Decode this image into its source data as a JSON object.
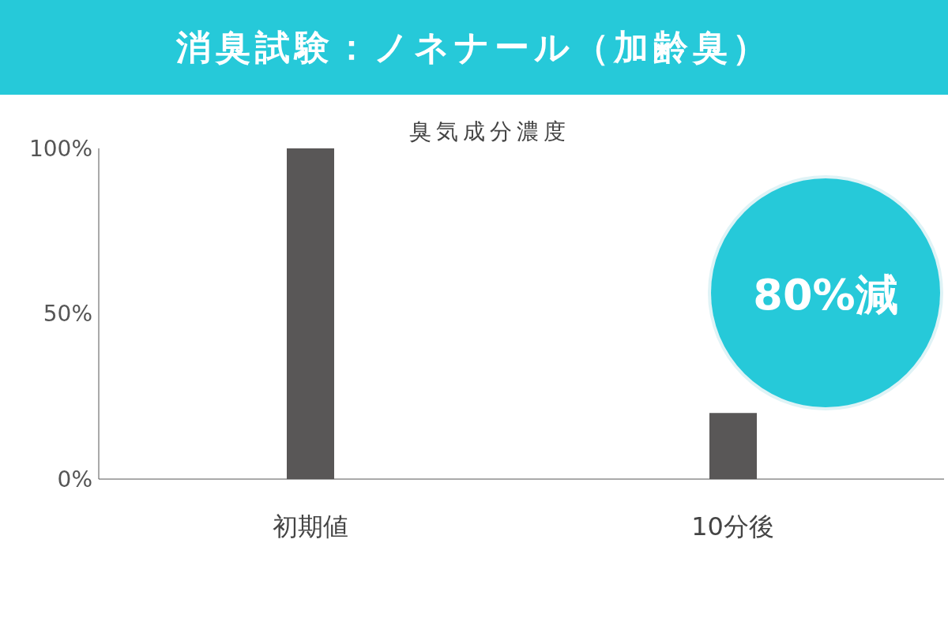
{
  "chart_data": {
    "type": "bar",
    "title": "消臭試験：ノネナール（加齢臭）",
    "subtitle": "臭気成分濃度",
    "categories": [
      "初期値",
      "10分後"
    ],
    "values": [
      100,
      20
    ],
    "color": "#595757",
    "ylim": [
      0,
      100
    ],
    "yticks": [
      {
        "value": 0,
        "label": "0%"
      },
      {
        "value": 50,
        "label": "50%"
      },
      {
        "value": 100,
        "label": "100%"
      }
    ],
    "grid": false,
    "annotations": [
      "80%減"
    ]
  }
}
